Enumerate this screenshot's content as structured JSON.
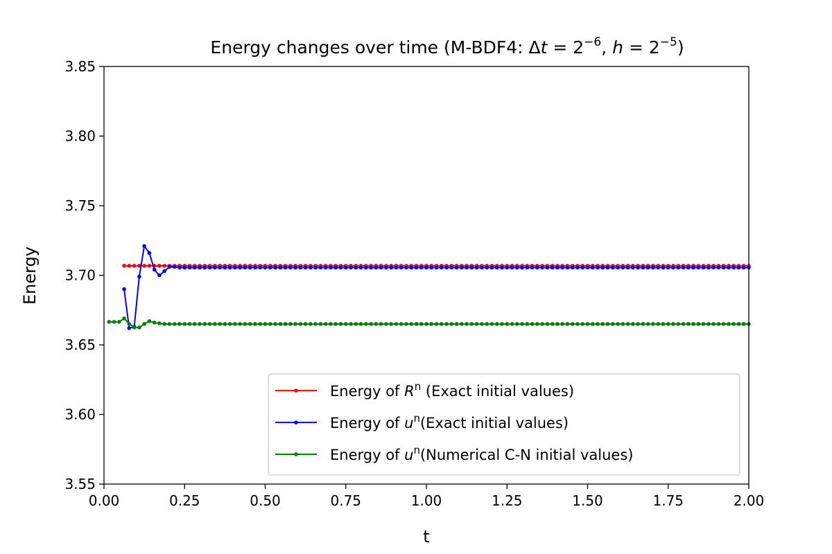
{
  "chart_data": {
    "type": "line",
    "title": {
      "prefix": "Energy changes over time (M-BDF4: Δ",
      "dt_var": "t",
      "eq1": " = 2",
      "exp1": "−6",
      "sep": ",  ",
      "h_var": "h",
      "eq2": " = 2",
      "exp2": "−5",
      "suffix": ")"
    },
    "xlabel": "t",
    "ylabel": "Energy",
    "xlim": [
      0.0,
      2.0
    ],
    "ylim": [
      3.55,
      3.85
    ],
    "xticks": [
      "0.00",
      "0.25",
      "0.50",
      "0.75",
      "1.00",
      "1.25",
      "1.50",
      "1.75",
      "2.00"
    ],
    "yticks": [
      "3.55",
      "3.60",
      "3.65",
      "3.70",
      "3.75",
      "3.80",
      "3.85"
    ],
    "legend_position": "lower-right",
    "series": [
      {
        "name": "Energy of R^n (Exact initial values)",
        "legend": {
          "pre": "Energy of ",
          "var": "R",
          "sup": "n",
          "post": " (Exact initial values)"
        },
        "color": "#ff0000",
        "start_t": 0.0625,
        "dt": 0.015625,
        "early_values": [
          3.7068,
          3.7068,
          3.7068,
          3.7068,
          3.7068,
          3.7068,
          3.7068,
          3.7068,
          3.7068,
          3.7068
        ],
        "steady_value": 3.7068,
        "end_t": 2.0
      },
      {
        "name": "Energy of u^n(Exact initial values)",
        "legend": {
          "pre": "Energy of ",
          "var": "u",
          "sup": "n",
          "post": "(Exact initial values)"
        },
        "color": "#0000ff",
        "start_t": 0.0625,
        "dt": 0.015625,
        "early_values": [
          3.69,
          3.662,
          3.663,
          3.699,
          3.721,
          3.716,
          3.704,
          3.7,
          3.703,
          3.706,
          3.706,
          3.7055
        ],
        "steady_value": 3.7055,
        "end_t": 2.0
      },
      {
        "name": "Energy of u^n(Numerical C-N initial values)",
        "legend": {
          "pre": "Energy of ",
          "var": "u",
          "sup": "n",
          "post": "(Numerical C-N initial values)"
        },
        "color": "#008000",
        "start_t": 0.015625,
        "dt": 0.015625,
        "early_values": [
          3.6665,
          3.6665,
          3.6665,
          3.669,
          3.665,
          3.6625,
          3.6625,
          3.665,
          3.667,
          3.666,
          3.6655,
          3.665
        ],
        "steady_value": 3.665,
        "end_t": 2.0
      }
    ]
  }
}
